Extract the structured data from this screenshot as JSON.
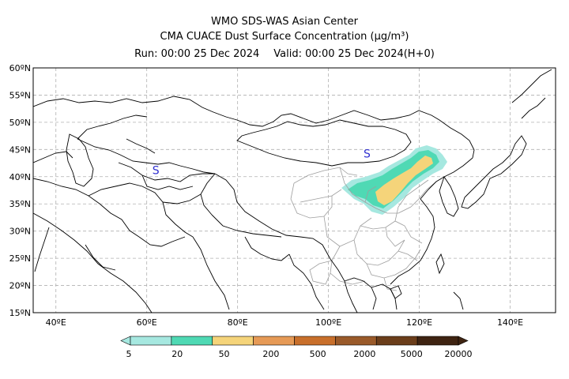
{
  "header": {
    "title": "WMO SDS-WAS Asian Center",
    "subtitle": "CMA CUACE Dust Surface Concentration (μg/m³)",
    "run": "Run: 00:00 25 Dec 2024",
    "valid": "Valid: 00:00 25 Dec 2024(H+0)"
  },
  "map": {
    "lon_range": [
      35,
      150
    ],
    "lat_range": [
      15,
      60
    ],
    "lat_ticks": [
      "60ºN",
      "55ºN",
      "50ºN",
      "45ºN",
      "40ºN",
      "35ºN",
      "30ºN",
      "25ºN",
      "20ºN",
      "15ºN"
    ],
    "lat_values": [
      60,
      55,
      50,
      45,
      40,
      35,
      30,
      25,
      20,
      15
    ],
    "lon_ticks": [
      "40ºE",
      "60ºE",
      "80ºE",
      "100ºE",
      "120ºE",
      "140ºE"
    ],
    "lon_values": [
      40,
      60,
      80,
      100,
      120,
      140
    ],
    "grid": true,
    "markers": [
      {
        "label": "S",
        "lon": 62,
        "lat": 40.5
      },
      {
        "label": "S",
        "lon": 108.5,
        "lat": 43.5
      }
    ]
  },
  "legend": {
    "ticks": [
      "5",
      "20",
      "50",
      "200",
      "500",
      "2000",
      "5000",
      "20000"
    ],
    "colors": [
      "#a6e8e0",
      "#4fd9b4",
      "#f5d47a",
      "#e69a56",
      "#c86f2b",
      "#9a5a2a",
      "#6b3e1b",
      "#3f2412"
    ]
  },
  "colors": {
    "land_border": "#000000",
    "china_province": "#9e9e9e",
    "grid": "#b0b0b0",
    "marker": "#3030d0"
  }
}
